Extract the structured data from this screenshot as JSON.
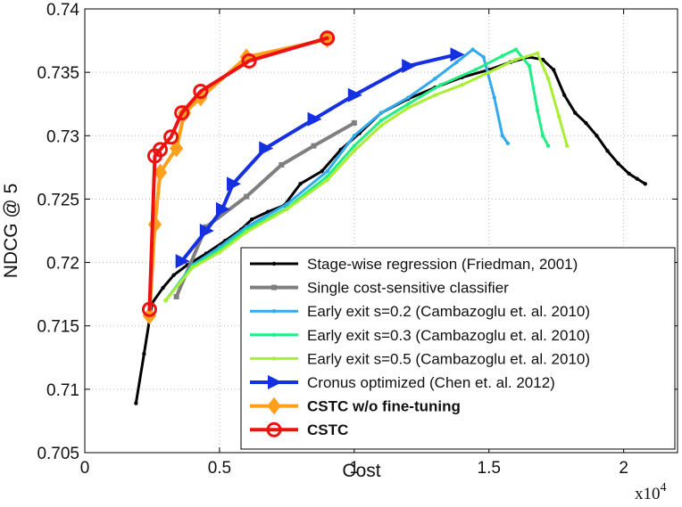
{
  "chart_data": {
    "type": "line",
    "title": "",
    "xlabel": "Cost",
    "ylabel": "NDCG @ 5",
    "x_multiplier": "x10",
    "x_multiplier_exp": "4",
    "xlim": [
      0,
      2.2
    ],
    "ylim": [
      0.705,
      0.74
    ],
    "x_ticks": [
      0,
      0.5,
      1,
      1.5,
      2
    ],
    "x_tick_labels": [
      "0",
      "0.5",
      "1",
      "1.5",
      "2"
    ],
    "y_ticks": [
      0.705,
      0.71,
      0.715,
      0.72,
      0.725,
      0.73,
      0.735,
      0.74
    ],
    "y_tick_labels": [
      "0.705",
      "0.71",
      "0.715",
      "0.72",
      "0.725",
      "0.73",
      "0.735",
      "0.74"
    ],
    "grid": true,
    "legend_position": "bottom-right",
    "series": [
      {
        "name": "Stage-wise regression (Friedman, 2001)",
        "color": "#000000",
        "marker": "dot",
        "bold": false,
        "values": [
          [
            0.19,
            0.7089
          ],
          [
            0.22,
            0.7128
          ],
          [
            0.25,
            0.7168
          ],
          [
            0.29,
            0.718
          ],
          [
            0.33,
            0.719
          ],
          [
            0.38,
            0.7198
          ],
          [
            0.45,
            0.7207
          ],
          [
            0.52,
            0.7217
          ],
          [
            0.58,
            0.7226
          ],
          [
            0.62,
            0.7234
          ],
          [
            0.68,
            0.724
          ],
          [
            0.74,
            0.7245
          ],
          [
            0.8,
            0.7262
          ],
          [
            0.88,
            0.7272
          ],
          [
            0.95,
            0.7289
          ],
          [
            1.02,
            0.7302
          ],
          [
            1.1,
            0.7318
          ],
          [
            1.2,
            0.7329
          ],
          [
            1.3,
            0.7338
          ],
          [
            1.4,
            0.7346
          ],
          [
            1.5,
            0.7352
          ],
          [
            1.58,
            0.7358
          ],
          [
            1.65,
            0.7362
          ],
          [
            1.7,
            0.736
          ],
          [
            1.74,
            0.7352
          ],
          [
            1.78,
            0.7332
          ],
          [
            1.82,
            0.7318
          ],
          [
            1.86,
            0.731
          ],
          [
            1.9,
            0.73
          ],
          [
            1.94,
            0.7288
          ],
          [
            1.98,
            0.7278
          ],
          [
            2.02,
            0.727
          ],
          [
            2.05,
            0.7266
          ],
          [
            2.08,
            0.7262
          ]
        ]
      },
      {
        "name": "Single cost-sensitive classifier",
        "color": "#7f7f7f",
        "marker": "square",
        "bold": false,
        "values": [
          [
            0.34,
            0.7173
          ],
          [
            0.45,
            0.7228
          ],
          [
            0.6,
            0.7252
          ],
          [
            0.73,
            0.7277
          ],
          [
            0.85,
            0.7292
          ],
          [
            1.0,
            0.731
          ]
        ]
      },
      {
        "name": "Early exit s=0.2 (Cambazoglu et. al. 2010)",
        "color": "#33aaee",
        "marker": "dot",
        "bold": false,
        "values": [
          [
            0.3,
            0.717
          ],
          [
            0.4,
            0.7198
          ],
          [
            0.5,
            0.7212
          ],
          [
            0.6,
            0.7228
          ],
          [
            0.75,
            0.7246
          ],
          [
            0.9,
            0.7272
          ],
          [
            1.0,
            0.73
          ],
          [
            1.1,
            0.7318
          ],
          [
            1.2,
            0.733
          ],
          [
            1.3,
            0.7345
          ],
          [
            1.38,
            0.7358
          ],
          [
            1.44,
            0.7368
          ],
          [
            1.48,
            0.7362
          ],
          [
            1.52,
            0.733
          ],
          [
            1.55,
            0.73
          ],
          [
            1.57,
            0.7294
          ]
        ]
      },
      {
        "name": "Early exit s=0.3 (Cambazoglu et. al. 2010)",
        "color": "#22ee88",
        "marker": "dot",
        "bold": false,
        "values": [
          [
            0.3,
            0.717
          ],
          [
            0.4,
            0.7197
          ],
          [
            0.5,
            0.721
          ],
          [
            0.6,
            0.7226
          ],
          [
            0.75,
            0.7243
          ],
          [
            0.9,
            0.7268
          ],
          [
            1.0,
            0.7292
          ],
          [
            1.1,
            0.7312
          ],
          [
            1.2,
            0.7325
          ],
          [
            1.32,
            0.734
          ],
          [
            1.45,
            0.7352
          ],
          [
            1.55,
            0.7363
          ],
          [
            1.6,
            0.7368
          ],
          [
            1.65,
            0.7355
          ],
          [
            1.68,
            0.732
          ],
          [
            1.7,
            0.73
          ],
          [
            1.72,
            0.7292
          ]
        ]
      },
      {
        "name": "Early exit s=0.5 (Cambazoglu et. al. 2010)",
        "color": "#aaee33",
        "marker": "dot",
        "bold": false,
        "values": [
          [
            0.3,
            0.717
          ],
          [
            0.4,
            0.7196
          ],
          [
            0.5,
            0.7208
          ],
          [
            0.6,
            0.7224
          ],
          [
            0.75,
            0.7242
          ],
          [
            0.9,
            0.7265
          ],
          [
            1.0,
            0.7288
          ],
          [
            1.1,
            0.7308
          ],
          [
            1.2,
            0.7322
          ],
          [
            1.3,
            0.7332
          ],
          [
            1.4,
            0.734
          ],
          [
            1.5,
            0.735
          ],
          [
            1.6,
            0.736
          ],
          [
            1.68,
            0.7365
          ],
          [
            1.72,
            0.7345
          ],
          [
            1.76,
            0.7315
          ],
          [
            1.79,
            0.7292
          ]
        ]
      },
      {
        "name": "Cronus optimized (Chen et. al. 2012)",
        "color": "#1530e0",
        "marker": "triangle-right",
        "bold": false,
        "values": [
          [
            0.36,
            0.7201
          ],
          [
            0.45,
            0.7225
          ],
          [
            0.51,
            0.7242
          ],
          [
            0.55,
            0.7262
          ],
          [
            0.67,
            0.729
          ],
          [
            0.85,
            0.7313
          ],
          [
            1.0,
            0.7332
          ],
          [
            1.2,
            0.7355
          ],
          [
            1.38,
            0.7364
          ]
        ]
      },
      {
        "name": "CSTC w/o fine-tuning",
        "color": "#ff9f1c",
        "marker": "diamond",
        "bold": true,
        "values": [
          [
            0.24,
            0.7158
          ],
          [
            0.26,
            0.723
          ],
          [
            0.28,
            0.7271
          ],
          [
            0.34,
            0.729
          ],
          [
            0.37,
            0.7318
          ],
          [
            0.43,
            0.733
          ],
          [
            0.6,
            0.7362
          ],
          [
            0.9,
            0.7376
          ]
        ]
      },
      {
        "name": "CSTC",
        "color": "#ee1111",
        "marker": "circle",
        "bold": true,
        "values": [
          [
            0.24,
            0.7163
          ],
          [
            0.26,
            0.7284
          ],
          [
            0.28,
            0.7289
          ],
          [
            0.32,
            0.7299
          ],
          [
            0.36,
            0.7318
          ],
          [
            0.43,
            0.7335
          ],
          [
            0.61,
            0.7359
          ],
          [
            0.9,
            0.7377
          ]
        ]
      }
    ]
  }
}
